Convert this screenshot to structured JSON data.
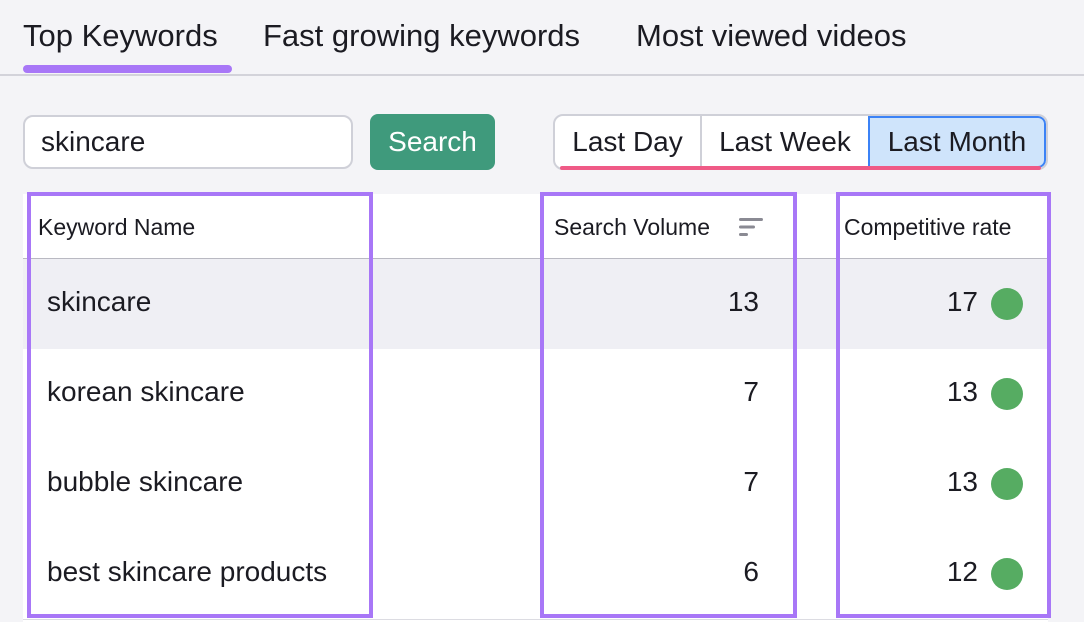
{
  "tabs": [
    {
      "label": "Top Keywords",
      "active": true
    },
    {
      "label": "Fast growing keywords",
      "active": false
    },
    {
      "label": "Most viewed videos",
      "active": false
    }
  ],
  "search": {
    "value": "skincare",
    "button_label": "Search"
  },
  "period": {
    "options": [
      "Last Day",
      "Last Week",
      "Last Month"
    ],
    "selected": "Last Month"
  },
  "table": {
    "headers": {
      "keyword": "Keyword Name",
      "volume": "Search Volume",
      "rate": "Competitive rate"
    },
    "sort_icon": "sort-icon",
    "rows": [
      {
        "keyword": "skincare",
        "volume": "13",
        "rate": "17",
        "rate_status": "green"
      },
      {
        "keyword": "korean skincare",
        "volume": "7",
        "rate": "13",
        "rate_status": "green"
      },
      {
        "keyword": "bubble skincare",
        "volume": "7",
        "rate": "13",
        "rate_status": "green"
      },
      {
        "keyword": "best skincare products",
        "volume": "6",
        "rate": "12",
        "rate_status": "green"
      }
    ]
  },
  "colors": {
    "accent_purple": "#a877f7",
    "search_button": "#3f9a7c",
    "selected_period": "#cfe4fb",
    "period_underline": "#ef5a86",
    "status_green": "#56ac62"
  }
}
